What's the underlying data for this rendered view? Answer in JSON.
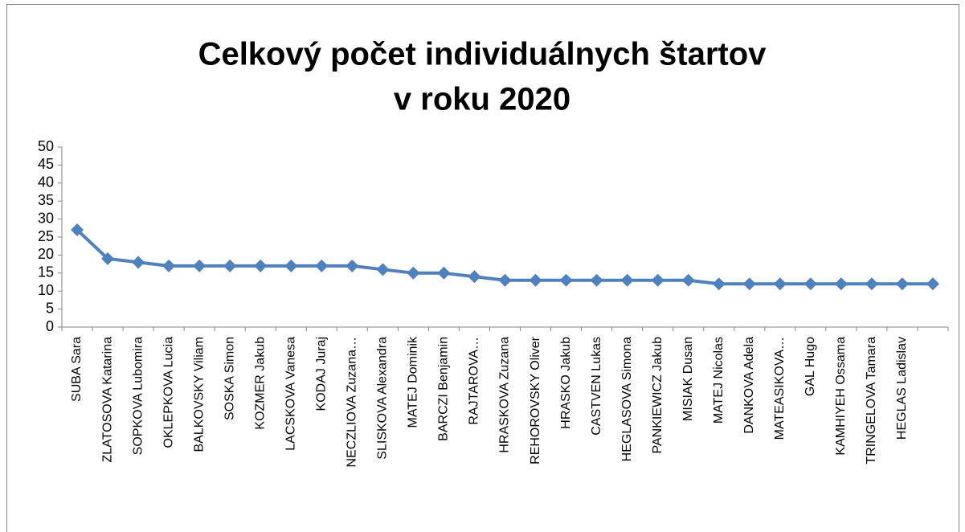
{
  "chart_data": {
    "type": "line",
    "title": [
      "Celkový počet individuálnych štartov",
      "v roku 2020"
    ],
    "categories": [
      "SUBA Sara",
      "ZLATOSOVA Katarina",
      "SOPKOVA Lubomira",
      "OKLEPKOVA Lucia",
      "BALKOVSKY Viliam",
      "SOSKA Simon",
      "KOZMER Jakub",
      "LACSKOVA Vanesa",
      "KODAJ Juraj",
      "NECZLIOVA Zuzana…",
      "SLISKOVA Alexandra",
      "MATEJ Dominik",
      "BARCZI Benjamin",
      "RAJTAROVA…",
      "HRASKOVA Zuzana",
      "REHOROVSKY Oliver",
      "HRASKO Jakub",
      "CASTVEN Lukas",
      "HEGLASOVA Simona",
      "PANKIEWICZ Jakub",
      "MISIAK Dusan",
      "MATEJ Nicolas",
      "DANKOVA Adela",
      "MATEASIKOVA…",
      "GAL Hugo",
      "KAMHIYEH Ossama",
      "TRINGELOVA Tamara",
      "HEGLAS Ladislav",
      null
    ],
    "series": [
      {
        "color": "#4f81bd",
        "values": [
          27,
          19,
          18,
          17,
          17,
          17,
          17,
          17,
          17,
          17,
          16,
          15,
          15,
          14,
          13,
          13,
          13,
          13,
          13,
          13,
          13,
          12,
          12,
          12,
          12,
          12,
          12,
          12,
          12
        ]
      }
    ],
    "ylim": [
      0,
      50
    ],
    "yticks": [
      0,
      5,
      10,
      15,
      20,
      25,
      30,
      35,
      40,
      45,
      50
    ],
    "grid": false
  }
}
